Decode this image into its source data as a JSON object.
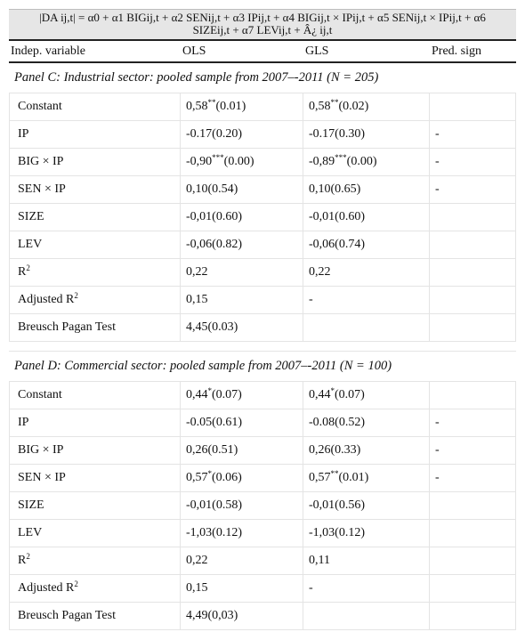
{
  "formula": {
    "line1": "|DA ij,t| = α0 + α1 BIGij,t + α2 SENij,t + α3 IPij,t + α4 BIGij,t × IPij,t + α5 SENij,t × IPij,t + α6",
    "line2": "SIZEij,t + α7 LEVij,t + Â¿ ij,t"
  },
  "header": {
    "col1": "Indep. variable",
    "col2": "OLS",
    "col3": "GLS",
    "col4": "Pred. sign"
  },
  "panels": [
    {
      "title": "Panel C: Industrial sector: pooled sample from 2007–-2011 (N = 205)",
      "rows": [
        {
          "var": "Constant",
          "ols_val": "0,58",
          "ols_sig": "**",
          "ols_p": "(0.01)",
          "gls_val": "0,58",
          "gls_sig": "**",
          "gls_p": "(0.02)",
          "sign": ""
        },
        {
          "var": "IP",
          "ols_val": "-0.17(0.20)",
          "ols_sig": "",
          "ols_p": "",
          "gls_val": "-0.17(0.30)",
          "gls_sig": "",
          "gls_p": "",
          "sign": "-"
        },
        {
          "var": "BIG × IP",
          "ols_val": "-0,90",
          "ols_sig": "***",
          "ols_p": "(0.00)",
          "gls_val": "-0,89",
          "gls_sig": "***",
          "gls_p": "(0.00)",
          "sign": "-"
        },
        {
          "var": "SEN × IP",
          "ols_val": "0,10(0.54)",
          "ols_sig": "",
          "ols_p": "",
          "gls_val": "0,10(0.65)",
          "gls_sig": "",
          "gls_p": "",
          "sign": "-"
        },
        {
          "var": "SIZE",
          "ols_val": "-0,01(0.60)",
          "ols_sig": "",
          "ols_p": "",
          "gls_val": "-0,01(0.60)",
          "gls_sig": "",
          "gls_p": "",
          "sign": ""
        },
        {
          "var": "LEV",
          "ols_val": "-0,06(0.82)",
          "ols_sig": "",
          "ols_p": "",
          "gls_val": "-0,06(0.74)",
          "gls_sig": "",
          "gls_p": "",
          "sign": ""
        },
        {
          "var": "R",
          "var_sup": "2",
          "ols_val": "0,22",
          "ols_sig": "",
          "ols_p": "",
          "gls_val": "0,22",
          "gls_sig": "",
          "gls_p": "",
          "sign": ""
        },
        {
          "var": "Adjusted R",
          "var_sup": "2",
          "ols_val": "0,15",
          "ols_sig": "",
          "ols_p": "",
          "gls_val": "-",
          "gls_sig": "",
          "gls_p": "",
          "sign": ""
        },
        {
          "var": "Breusch Pagan Test",
          "ols_val": "4,45(0.03)",
          "ols_sig": "",
          "ols_p": "",
          "gls_val": "",
          "gls_sig": "",
          "gls_p": "",
          "sign": ""
        }
      ]
    },
    {
      "title": "Panel D: Commercial sector: pooled sample from 2007–-2011 (N = 100)",
      "rows": [
        {
          "var": "Constant",
          "ols_val": "0,44",
          "ols_sig": "*",
          "ols_p": "(0.07)",
          "gls_val": "0,44",
          "gls_sig": "*",
          "gls_p": "(0.07)",
          "sign": ""
        },
        {
          "var": "IP",
          "ols_val": "-0.05(0.61)",
          "ols_sig": "",
          "ols_p": "",
          "gls_val": "-0.08(0.52)",
          "gls_sig": "",
          "gls_p": "",
          "sign": "-"
        },
        {
          "var": "BIG × IP",
          "ols_val": "0,26(0.51)",
          "ols_sig": "",
          "ols_p": "",
          "gls_val": "0,26(0.33)",
          "gls_sig": "",
          "gls_p": "",
          "sign": "-"
        },
        {
          "var": "SEN × IP",
          "ols_val": "0,57",
          "ols_sig": "*",
          "ols_p": "(0.06)",
          "gls_val": "0,57",
          "gls_sig": "**",
          "gls_p": "(0.01)",
          "sign": "-"
        },
        {
          "var": "SIZE",
          "ols_val": "-0,01(0.58)",
          "ols_sig": "",
          "ols_p": "",
          "gls_val": "-0,01(0.56)",
          "gls_sig": "",
          "gls_p": "",
          "sign": ""
        },
        {
          "var": "LEV",
          "ols_val": "-1,03(0.12)",
          "ols_sig": "",
          "ols_p": "",
          "gls_val": "-1,03(0.12)",
          "gls_sig": "",
          "gls_p": "",
          "sign": ""
        },
        {
          "var": "R",
          "var_sup": "2",
          "ols_val": "0,22",
          "ols_sig": "",
          "ols_p": "",
          "gls_val": "0,11",
          "gls_sig": "",
          "gls_p": "",
          "sign": ""
        },
        {
          "var": "Adjusted R",
          "var_sup": "2",
          "ols_val": "0,15",
          "ols_sig": "",
          "ols_p": "",
          "gls_val": "-",
          "gls_sig": "",
          "gls_p": "",
          "sign": ""
        },
        {
          "var": "Breusch Pagan Test",
          "ols_val": "4,49(0,03)",
          "ols_sig": "",
          "ols_p": "",
          "gls_val": "",
          "gls_sig": "",
          "gls_p": "",
          "sign": ""
        }
      ]
    }
  ]
}
